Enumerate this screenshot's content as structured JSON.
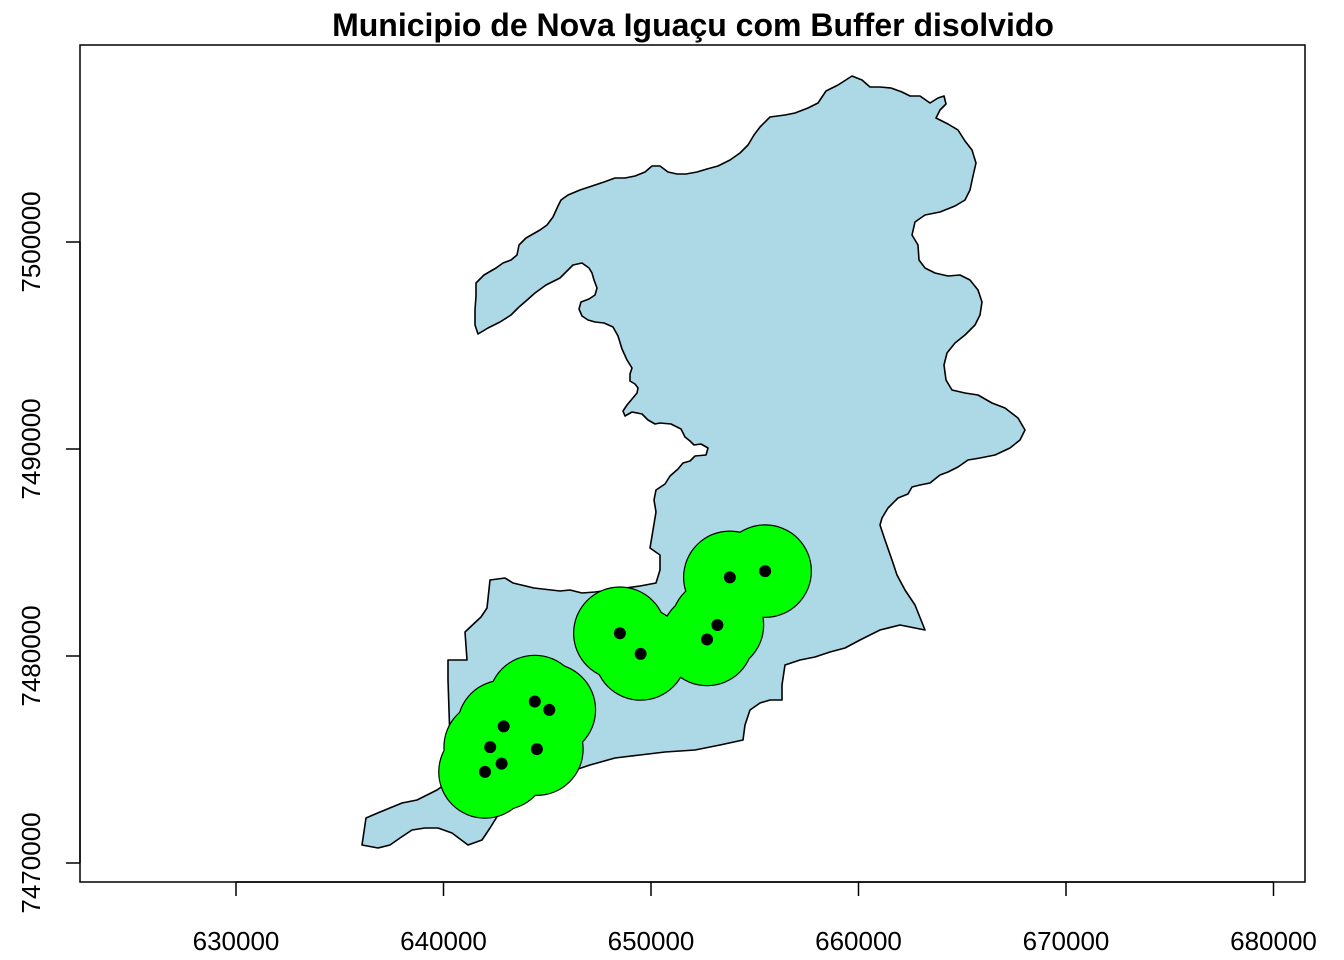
{
  "map": {
    "title": "Municipio de Nova Iguaçu com Buffer disolvido",
    "x_ticks": [
      "630000",
      "640000",
      "650000",
      "660000",
      "670000",
      "680000"
    ],
    "y_ticks": [
      "7470000",
      "7480000",
      "7490000",
      "7500000"
    ],
    "colors": {
      "municipality_fill": "#ADD8E6",
      "buffer_fill": "#00FF00",
      "point_fill": "#000000",
      "outline": "#000000"
    },
    "buffer_radius": 2200,
    "points": [
      {
        "x": 642000,
        "y": 7474400
      },
      {
        "x": 642250,
        "y": 7475600
      },
      {
        "x": 642800,
        "y": 7474800
      },
      {
        "x": 642900,
        "y": 7476600
      },
      {
        "x": 644400,
        "y": 7477800
      },
      {
        "x": 645100,
        "y": 7477400
      },
      {
        "x": 644500,
        "y": 7475500
      },
      {
        "x": 648500,
        "y": 7481100
      },
      {
        "x": 649500,
        "y": 7480100
      },
      {
        "x": 652700,
        "y": 7480800
      },
      {
        "x": 653200,
        "y": 7481500
      },
      {
        "x": 653800,
        "y": 7483800
      },
      {
        "x": 655500,
        "y": 7484100
      }
    ]
  }
}
